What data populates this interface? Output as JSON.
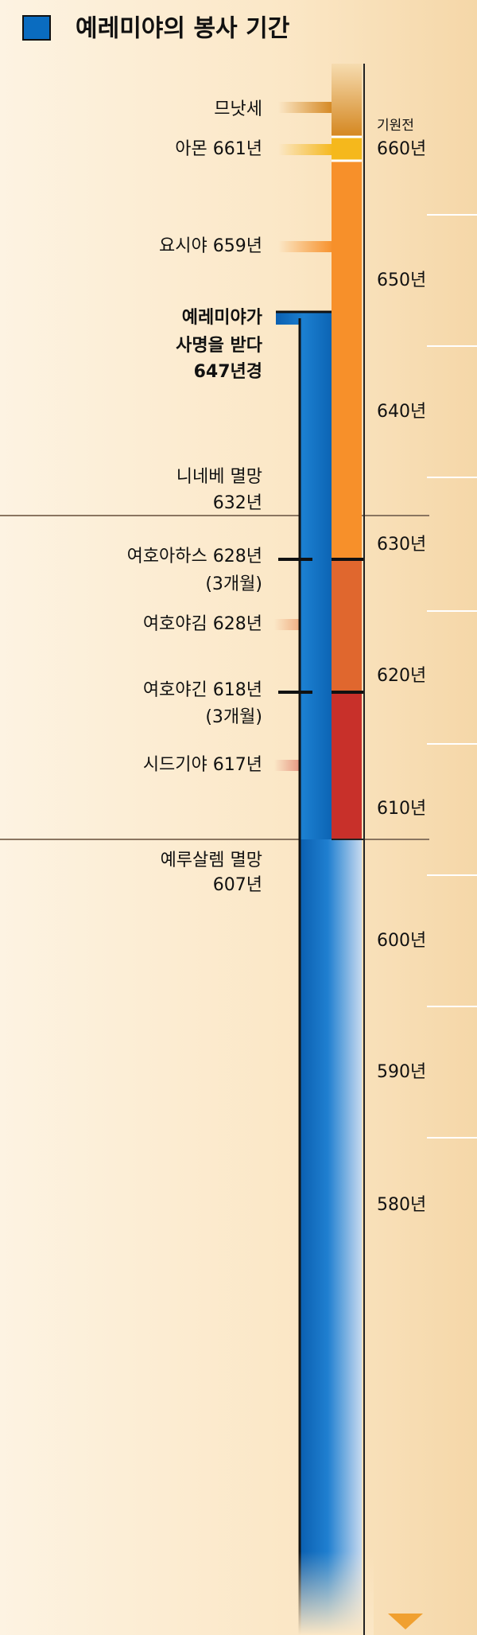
{
  "title": "예레미야의 봉사 기간",
  "axis": {
    "label": "기원전",
    "ticks": [
      "660년",
      "650년",
      "640년",
      "630년",
      "620년",
      "610년",
      "600년",
      "590년",
      "580년"
    ]
  },
  "events": [
    {
      "lines": [
        "므낫세"
      ]
    },
    {
      "lines": [
        "아몬 661년"
      ]
    },
    {
      "lines": [
        "요시야 659년"
      ]
    },
    {
      "lines": [
        "예레미야가",
        "사명을 받다",
        "647년경"
      ]
    },
    {
      "lines": [
        "니네베 멸망",
        "632년"
      ]
    },
    {
      "lines": [
        "여호아하스 628년",
        "(3개월)"
      ]
    },
    {
      "lines": [
        "여호야김 628년"
      ]
    },
    {
      "lines": [
        "여호야긴 618년",
        "(3개월)"
      ]
    },
    {
      "lines": [
        "시드기야 617년"
      ]
    },
    {
      "lines": [
        "예루살렘 멸망",
        "607년"
      ]
    }
  ]
}
